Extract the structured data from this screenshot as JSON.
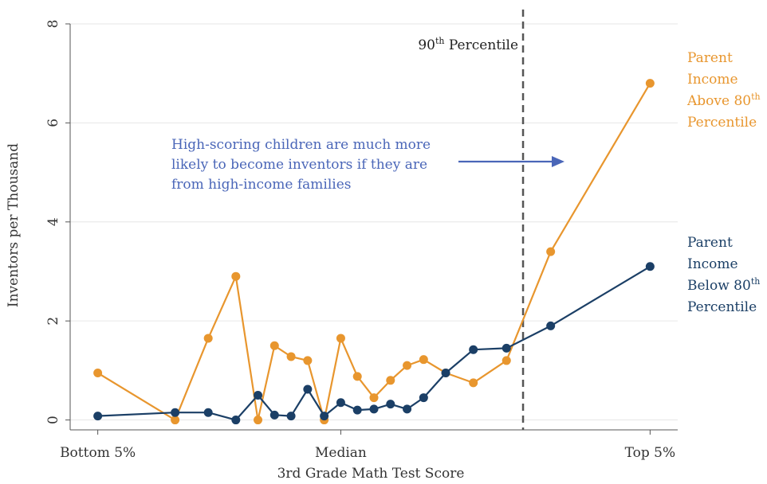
{
  "chart_data": {
    "type": "line",
    "xlabel": "3rd Grade Math Test Score",
    "ylabel": "Inventors per Thousand",
    "x_ticks": [
      {
        "x": 0,
        "label": "Bottom 5%"
      },
      {
        "x": 44,
        "label": "Median"
      },
      {
        "x": 100,
        "label": "Top 5%"
      }
    ],
    "xlim": [
      -5,
      105
    ],
    "ylim": [
      -0.2,
      8
    ],
    "y_ticks": [
      0,
      2,
      4,
      6,
      8
    ],
    "grid": "horizontal",
    "colors": {
      "high_income": "#e8962e",
      "low_income": "#1b3f66",
      "annotation": "#4a66b8",
      "percentile_line": "#555555"
    },
    "reference_line": {
      "x": 77,
      "label_main": "90",
      "label_sup": "th",
      "label_rest": " Percentile"
    },
    "annotation": {
      "lines": [
        "High-scoring children are much more",
        "likely to become inventors if they are",
        "from high-income families"
      ]
    },
    "series": [
      {
        "name_lines": [
          "Parent",
          "Income",
          "Above 80th",
          "Percentile"
        ],
        "label_parts": [
          {
            "main": "Parent"
          },
          {
            "main": "Income"
          },
          {
            "main": "Above 80",
            "sup": "th"
          },
          {
            "main": "Percentile"
          }
        ],
        "color": "#e8962e",
        "points": [
          [
            0,
            0.95
          ],
          [
            14,
            0.0
          ],
          [
            20,
            1.65
          ],
          [
            25,
            2.9
          ],
          [
            29,
            0.0
          ],
          [
            32,
            1.5
          ],
          [
            35,
            1.28
          ],
          [
            38,
            1.2
          ],
          [
            41,
            0.0
          ],
          [
            44,
            1.65
          ],
          [
            47,
            0.88
          ],
          [
            50,
            0.45
          ],
          [
            53,
            0.8
          ],
          [
            56,
            1.1
          ],
          [
            59,
            1.22
          ],
          [
            63,
            0.95
          ],
          [
            68,
            0.75
          ],
          [
            74,
            1.2
          ],
          [
            82,
            3.4
          ],
          [
            100,
            6.8
          ]
        ]
      },
      {
        "label_parts": [
          {
            "main": "Parent"
          },
          {
            "main": "Income"
          },
          {
            "main": "Below 80",
            "sup": "th"
          },
          {
            "main": "Percentile"
          }
        ],
        "color": "#1b3f66",
        "points": [
          [
            0,
            0.08
          ],
          [
            14,
            0.15
          ],
          [
            20,
            0.15
          ],
          [
            25,
            0.0
          ],
          [
            29,
            0.5
          ],
          [
            32,
            0.1
          ],
          [
            35,
            0.08
          ],
          [
            38,
            0.62
          ],
          [
            41,
            0.08
          ],
          [
            44,
            0.35
          ],
          [
            47,
            0.2
          ],
          [
            50,
            0.22
          ],
          [
            53,
            0.32
          ],
          [
            56,
            0.22
          ],
          [
            59,
            0.45
          ],
          [
            63,
            0.95
          ],
          [
            68,
            1.42
          ],
          [
            74,
            1.45
          ],
          [
            82,
            1.9
          ],
          [
            100,
            3.1
          ]
        ]
      }
    ]
  }
}
